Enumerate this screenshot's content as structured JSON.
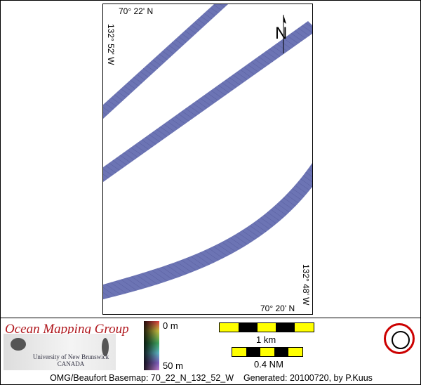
{
  "map": {
    "top_label": "70° 22' N",
    "left_label": "132° 52' W",
    "bottom_label": "70° 20' N",
    "right_label": "132° 48' W",
    "north_label": "N",
    "swath_color": "#6c74b4"
  },
  "legend": {
    "org_title": "Ocean Mapping Group",
    "university": "University of New Brunswick",
    "country": "CANADA",
    "depth_top": "0 m",
    "depth_bottom": "50 m",
    "scale_km": "1 km",
    "scale_nm": "0.4 NM"
  },
  "footer": {
    "basemap": "OMG/Beaufort Basemap: 70_22_N_132_52_W",
    "generated": "Generated: 20100720, by P.Kuus"
  }
}
